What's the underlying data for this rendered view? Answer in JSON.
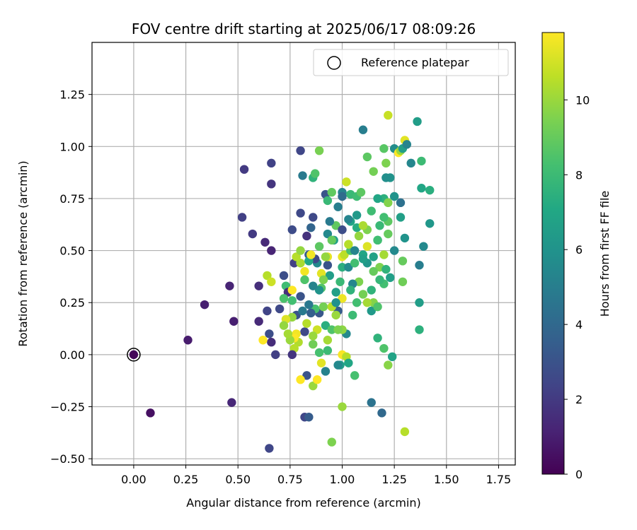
{
  "chart_data": {
    "type": "scatter",
    "title": "FOV centre drift starting at 2025/06/17 08:09:26",
    "xlabel": "Angular distance from reference (arcmin)",
    "ylabel": "Rotation from reference (arcmin)",
    "xlim": [
      -0.2,
      1.83
    ],
    "ylim": [
      -0.53,
      1.5
    ],
    "xticks": [
      0.0,
      0.25,
      0.5,
      0.75,
      1.0,
      1.25,
      1.5,
      1.75
    ],
    "xtick_labels": [
      "0.00",
      "0.25",
      "0.50",
      "0.75",
      "1.00",
      "1.25",
      "1.50",
      "1.75"
    ],
    "yticks": [
      -0.5,
      -0.25,
      0.0,
      0.25,
      0.5,
      0.75,
      1.0,
      1.25
    ],
    "ytick_labels": [
      "−0.50",
      "−0.25",
      "0.00",
      "0.25",
      "0.50",
      "0.75",
      "1.00",
      "1.25"
    ],
    "grid": true,
    "legend": {
      "placement": "top-right",
      "entries": [
        "Reference platepar"
      ]
    },
    "reference_point": {
      "x": 0.0,
      "y": 0.0
    },
    "colorbar": {
      "label": "Hours from first FF file",
      "range": [
        0,
        11.8
      ],
      "ticks": [
        0,
        2,
        4,
        6,
        8,
        10
      ],
      "tick_labels": [
        "0",
        "2",
        "4",
        "6",
        "8",
        "10"
      ],
      "colormap": "viridis"
    },
    "points": [
      [
        0.0,
        0.0,
        0.2
      ],
      [
        0.08,
        -0.28,
        0.5
      ],
      [
        0.26,
        0.07,
        0.9
      ],
      [
        0.34,
        0.24,
        1.0
      ],
      [
        0.46,
        0.33,
        1.2
      ],
      [
        0.48,
        0.16,
        1.0
      ],
      [
        0.47,
        -0.23,
        1.3
      ],
      [
        0.53,
        0.89,
        2.0
      ],
      [
        0.52,
        0.66,
        2.2
      ],
      [
        0.57,
        0.58,
        2.0
      ],
      [
        0.6,
        0.33,
        1.6
      ],
      [
        0.6,
        0.16,
        1.4
      ],
      [
        0.63,
        0.54,
        1.4
      ],
      [
        0.66,
        0.92,
        2.3
      ],
      [
        0.66,
        0.82,
        1.8
      ],
      [
        0.66,
        0.5,
        1.2
      ],
      [
        0.64,
        0.21,
        2.4
      ],
      [
        0.65,
        0.1,
        2.8
      ],
      [
        0.66,
        0.06,
        1.5
      ],
      [
        0.68,
        0.0,
        2.2
      ],
      [
        0.65,
        -0.45,
        2.5
      ],
      [
        0.62,
        0.07,
        11.8
      ],
      [
        0.64,
        0.38,
        10.5
      ],
      [
        0.66,
        0.35,
        10.9
      ],
      [
        0.7,
        0.22,
        2.6
      ],
      [
        0.72,
        0.38,
        2.8
      ],
      [
        0.73,
        0.33,
        8.1
      ],
      [
        0.74,
        0.3,
        1.6
      ],
      [
        0.76,
        0.6,
        2.7
      ],
      [
        0.76,
        0.26,
        8.2
      ],
      [
        0.77,
        0.44,
        2.2
      ],
      [
        0.78,
        0.19,
        3.0
      ],
      [
        0.8,
        0.98,
        2.5
      ],
      [
        0.81,
        0.86,
        4.8
      ],
      [
        0.8,
        0.68,
        2.6
      ],
      [
        0.8,
        0.44,
        10.3
      ],
      [
        0.82,
        0.4,
        11.6
      ],
      [
        0.83,
        0.57,
        1.7
      ],
      [
        0.84,
        0.48,
        3.4
      ],
      [
        0.85,
        0.61,
        3.8
      ],
      [
        0.86,
        0.66,
        2.6
      ],
      [
        0.86,
        0.85,
        7.6
      ],
      [
        0.87,
        0.87,
        8.5
      ],
      [
        0.89,
        0.98,
        9.4
      ],
      [
        0.92,
        0.77,
        3.0
      ],
      [
        0.93,
        0.74,
        7.9
      ],
      [
        0.95,
        0.78,
        8.9
      ],
      [
        1.0,
        0.78,
        5.2
      ],
      [
        1.02,
        0.83,
        10.9
      ],
      [
        1.04,
        0.77,
        7.9
      ],
      [
        1.07,
        0.76,
        8.1
      ],
      [
        1.09,
        0.78,
        8.8
      ],
      [
        1.1,
        1.08,
        5.0
      ],
      [
        1.12,
        0.95,
        8.8
      ],
      [
        1.15,
        0.88,
        9.3
      ],
      [
        1.22,
        1.15,
        10.8
      ],
      [
        1.25,
        0.99,
        5.7
      ],
      [
        1.27,
        0.97,
        11.8
      ],
      [
        1.28,
        0.98,
        10.0
      ],
      [
        1.29,
        0.99,
        6.6
      ],
      [
        1.3,
        1.03,
        11.3
      ],
      [
        1.31,
        1.01,
        5.3
      ],
      [
        1.33,
        0.92,
        5.4
      ],
      [
        1.36,
        1.12,
        6.5
      ],
      [
        1.38,
        0.93,
        8.0
      ],
      [
        1.38,
        0.8,
        7.0
      ],
      [
        1.42,
        0.79,
        7.4
      ],
      [
        1.42,
        0.63,
        6.2
      ],
      [
        1.39,
        0.52,
        5.5
      ],
      [
        1.37,
        0.43,
        5.0
      ],
      [
        1.37,
        0.25,
        6.5
      ],
      [
        1.37,
        0.12,
        7.5
      ],
      [
        1.29,
        0.45,
        9.0
      ],
      [
        1.3,
        0.56,
        6.0
      ],
      [
        1.29,
        0.35,
        9.2
      ],
      [
        1.25,
        0.5,
        5.5
      ],
      [
        1.23,
        0.85,
        6.0
      ],
      [
        1.21,
        0.85,
        5.8
      ],
      [
        1.2,
        0.99,
        8.7
      ],
      [
        1.21,
        0.92,
        9.5
      ],
      [
        1.2,
        0.75,
        7.5
      ],
      [
        1.22,
        0.73,
        9.6
      ],
      [
        1.25,
        0.76,
        6.0
      ],
      [
        1.28,
        0.66,
        6.6
      ],
      [
        1.28,
        0.73,
        4.4
      ],
      [
        1.22,
        0.64,
        8.8
      ],
      [
        1.22,
        0.58,
        9.0
      ],
      [
        1.18,
        0.62,
        7.9
      ],
      [
        1.17,
        0.55,
        6.9
      ],
      [
        1.2,
        0.48,
        10.2
      ],
      [
        1.18,
        0.42,
        9.5
      ],
      [
        1.21,
        0.41,
        7.6
      ],
      [
        1.2,
        0.34,
        8.2
      ],
      [
        1.23,
        0.37,
        6.6
      ],
      [
        1.17,
        0.75,
        7.0
      ],
      [
        1.14,
        0.69,
        8.1
      ],
      [
        1.12,
        0.6,
        9.5
      ],
      [
        1.12,
        0.52,
        11.2
      ],
      [
        1.1,
        0.48,
        7.0
      ],
      [
        1.12,
        0.44,
        6.2
      ],
      [
        1.14,
        0.31,
        7.6
      ],
      [
        1.14,
        0.21,
        6.3
      ],
      [
        1.15,
        0.25,
        9.6
      ],
      [
        1.17,
        0.23,
        8.5
      ],
      [
        1.17,
        0.08,
        7.6
      ],
      [
        1.2,
        0.03,
        8.5
      ],
      [
        1.22,
        -0.05,
        9.7
      ],
      [
        1.24,
        -0.01,
        6.8
      ],
      [
        1.14,
        -0.23,
        4.5
      ],
      [
        1.19,
        -0.28,
        4.0
      ],
      [
        1.3,
        -0.37,
        10.5
      ],
      [
        1.17,
        0.55,
        8.2
      ],
      [
        1.07,
        0.67,
        6.3
      ],
      [
        1.07,
        0.61,
        7.3
      ],
      [
        1.08,
        0.57,
        9.9
      ],
      [
        1.1,
        0.62,
        10.3
      ],
      [
        1.08,
        0.35,
        9.5
      ],
      [
        1.07,
        0.25,
        8.2
      ],
      [
        1.05,
        0.34,
        5.4
      ],
      [
        1.04,
        0.31,
        7.6
      ],
      [
        1.05,
        0.19,
        8.0
      ],
      [
        1.02,
        0.1,
        5.5
      ],
      [
        1.0,
        0.27,
        11.5
      ],
      [
        1.0,
        0.12,
        9.8
      ],
      [
        1.0,
        0.0,
        11.7
      ],
      [
        1.02,
        -0.01,
        10.5
      ],
      [
        1.03,
        -0.04,
        7.0
      ],
      [
        1.06,
        -0.1,
        8.3
      ],
      [
        0.99,
        -0.05,
        6.5
      ],
      [
        1.0,
        -0.25,
        10.0
      ],
      [
        0.98,
        0.21,
        3.4
      ],
      [
        0.99,
        0.35,
        7.9
      ],
      [
        0.96,
        0.55,
        6.6
      ],
      [
        0.97,
        0.62,
        8.9
      ],
      [
        0.98,
        0.71,
        5.0
      ],
      [
        1.0,
        0.76,
        4.1
      ],
      [
        1.0,
        0.42,
        7.4
      ],
      [
        1.0,
        0.47,
        11.4
      ],
      [
        1.01,
        0.48,
        10.6
      ],
      [
        1.03,
        0.42,
        5.6
      ],
      [
        1.04,
        0.5,
        8.4
      ],
      [
        1.04,
        0.64,
        6.8
      ],
      [
        1.03,
        0.65,
        5.3
      ],
      [
        1.06,
        0.5,
        5.3
      ],
      [
        0.94,
        0.64,
        4.8
      ],
      [
        0.93,
        0.58,
        5.5
      ],
      [
        0.93,
        0.43,
        3.0
      ],
      [
        0.93,
        0.47,
        11.4
      ],
      [
        0.92,
        0.47,
        9.9
      ],
      [
        0.94,
        0.38,
        6.5
      ],
      [
        0.9,
        0.39,
        11.3
      ],
      [
        0.91,
        0.36,
        9.5
      ],
      [
        0.9,
        0.32,
        8.6
      ],
      [
        0.89,
        0.31,
        6.0
      ],
      [
        0.89,
        0.2,
        3.2
      ],
      [
        0.87,
        0.22,
        8.3
      ],
      [
        0.88,
        0.12,
        10.9
      ],
      [
        0.89,
        0.01,
        8.3
      ],
      [
        0.9,
        -0.04,
        11.3
      ],
      [
        0.92,
        -0.08,
        5.2
      ],
      [
        0.89,
        0.52,
        8.8
      ],
      [
        0.88,
        0.44,
        5.5
      ],
      [
        0.87,
        0.46,
        2.6
      ],
      [
        0.86,
        0.33,
        5.3
      ],
      [
        0.84,
        0.45,
        7.1
      ],
      [
        0.82,
        0.36,
        8.5
      ],
      [
        0.8,
        0.28,
        3.0
      ],
      [
        0.81,
        0.21,
        4.8
      ],
      [
        0.82,
        0.11,
        2.6
      ],
      [
        0.83,
        0.15,
        10.5
      ],
      [
        0.84,
        0.24,
        4.7
      ],
      [
        0.85,
        0.2,
        3.6
      ],
      [
        0.86,
        0.05,
        9.2
      ],
      [
        0.86,
        -0.15,
        10.0
      ],
      [
        0.88,
        -0.12,
        11.8
      ],
      [
        0.83,
        -0.1,
        3.0
      ],
      [
        0.82,
        -0.3,
        2.5
      ],
      [
        0.84,
        -0.3,
        3.4
      ],
      [
        0.8,
        -0.12,
        11.8
      ],
      [
        0.79,
        0.06,
        10.4
      ],
      [
        0.78,
        0.1,
        11.6
      ],
      [
        0.77,
        0.08,
        11.8
      ],
      [
        0.77,
        0.03,
        10.5
      ],
      [
        0.75,
        0.07,
        10.0
      ],
      [
        0.76,
        0.31,
        11.8
      ],
      [
        0.76,
        0.18,
        9.9
      ],
      [
        0.74,
        0.1,
        10.2
      ],
      [
        0.73,
        0.17,
        11.2
      ],
      [
        0.72,
        0.27,
        8.4
      ],
      [
        0.72,
        0.14,
        9.9
      ],
      [
        0.76,
        0.0,
        1.8
      ],
      [
        0.78,
        0.47,
        10.5
      ],
      [
        0.8,
        0.5,
        9.9
      ],
      [
        0.85,
        0.48,
        11.6
      ],
      [
        0.91,
        0.23,
        9.3
      ],
      [
        0.92,
        0.14,
        7.4
      ],
      [
        0.95,
        0.12,
        8.5
      ],
      [
        0.95,
        0.23,
        10.5
      ],
      [
        0.97,
        0.3,
        6.6
      ],
      [
        0.97,
        0.25,
        5.9
      ],
      [
        1.0,
        0.6,
        2.8
      ],
      [
        1.03,
        0.53,
        10.5
      ],
      [
        1.06,
        0.44,
        8.2
      ],
      [
        1.1,
        0.29,
        9.3
      ],
      [
        1.15,
        0.4,
        9.0
      ],
      [
        1.18,
        0.36,
        7.8
      ],
      [
        1.12,
        0.25,
        10.2
      ],
      [
        1.1,
        0.46,
        6.6
      ],
      [
        1.15,
        0.47,
        6.7
      ],
      [
        1.2,
        0.66,
        8.2
      ],
      [
        0.97,
        0.19,
        10.0
      ],
      [
        0.93,
        0.02,
        8.0
      ],
      [
        0.86,
        0.09,
        10.0
      ],
      [
        0.93,
        0.07,
        10.2
      ],
      [
        0.95,
        -0.42,
        9.5
      ],
      [
        0.98,
        -0.05,
        5.5
      ],
      [
        0.98,
        0.12,
        9.5
      ],
      [
        0.95,
        0.55,
        9.0
      ]
    ]
  }
}
